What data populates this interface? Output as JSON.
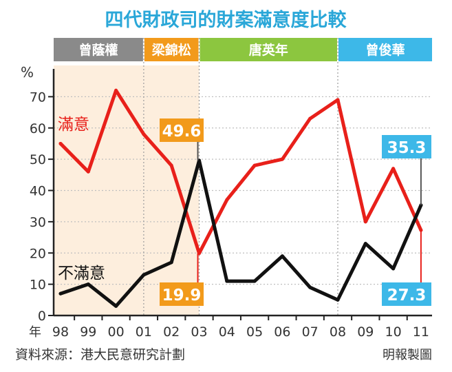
{
  "chart_data": {
    "type": "line",
    "title": "四代財政司的財案滿意度比較",
    "ylabel": "%",
    "xlabel": "年",
    "ylim": [
      0,
      80
    ],
    "yticks": [
      0,
      10,
      20,
      30,
      40,
      50,
      60,
      70
    ],
    "categories": [
      "98",
      "99",
      "00",
      "01",
      "02",
      "03",
      "04",
      "05",
      "06",
      "07",
      "08",
      "09",
      "10",
      "11"
    ],
    "series": [
      {
        "name": "滿意",
        "color": "#e8201a",
        "values": [
          55,
          46,
          72,
          58,
          48,
          19.9,
          37,
          48,
          50,
          63,
          69,
          30,
          47,
          27.3
        ]
      },
      {
        "name": "不滿意",
        "color": "#111111",
        "values": [
          7,
          10,
          3,
          13,
          17,
          49.6,
          11,
          11,
          19,
          9,
          5,
          23,
          15,
          35.3
        ]
      }
    ],
    "periods": [
      {
        "name": "曾蔭權",
        "start": 0,
        "end": 3,
        "color": "#8a8a8a",
        "shaded": true
      },
      {
        "name": "梁錦松",
        "start": 3,
        "end": 5,
        "color": "#f29a1b",
        "shaded": true
      },
      {
        "name": "唐英年",
        "start": 5,
        "end": 10,
        "color": "#8cc63f",
        "shaded": false
      },
      {
        "name": "曾俊華",
        "start": 10,
        "end": 13.5,
        "color": "#3db8e8",
        "shaded": false
      }
    ],
    "callouts": [
      {
        "text": "49.6",
        "color": "#f29a1b"
      },
      {
        "text": "19.9",
        "color": "#f29a1b"
      },
      {
        "text": "35.3",
        "color": "#3db8e8"
      },
      {
        "text": "27.3",
        "color": "#3db8e8"
      }
    ],
    "source": "資料來源：港大民意研究計劃",
    "credit": "明報製圖",
    "grid": true
  }
}
